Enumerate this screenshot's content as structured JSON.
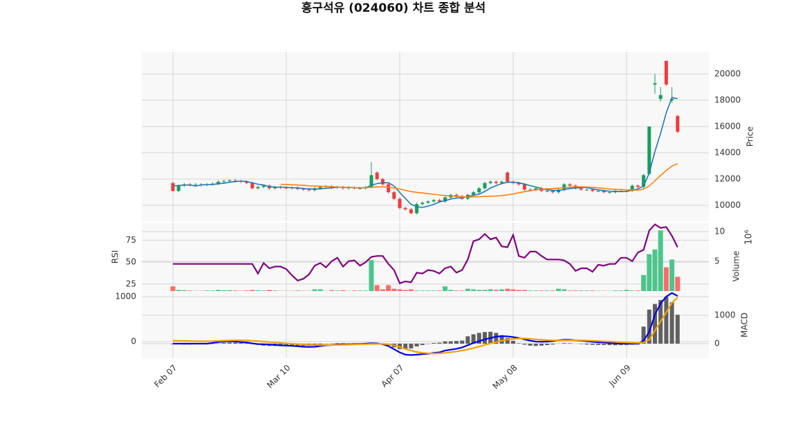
{
  "chart_data": [
    {
      "type": "candlestick",
      "title": "흥구석유 (024060) 차트 종합 분석",
      "ylabel": "Price",
      "y_side": "right",
      "grid": true,
      "up_color": "#14a05c",
      "down_color": "#f03c3c",
      "ylim": [
        8790,
        21684
      ],
      "yticks": [
        10000,
        12000,
        14000,
        16000,
        18000,
        20000
      ],
      "categories": [
        "Feb 07",
        null,
        null,
        null,
        null,
        null,
        null,
        null,
        null,
        null,
        null,
        null,
        null,
        null,
        null,
        null,
        null,
        null,
        null,
        null,
        "Mar 10",
        null,
        null,
        null,
        null,
        null,
        null,
        null,
        null,
        null,
        null,
        null,
        null,
        null,
        null,
        null,
        null,
        null,
        null,
        null,
        "Apr 07",
        null,
        null,
        null,
        null,
        null,
        null,
        null,
        null,
        null,
        null,
        null,
        null,
        null,
        null,
        null,
        null,
        null,
        null,
        null,
        "May 08",
        null,
        null,
        null,
        null,
        null,
        null,
        null,
        null,
        null,
        null,
        null,
        null,
        null,
        null,
        null,
        null,
        null,
        null,
        null,
        "Jun 09",
        null,
        null,
        null,
        null,
        null,
        null,
        null,
        null,
        null
      ],
      "open": [
        11700,
        11100,
        11500,
        11600,
        11550,
        11600,
        11550,
        11600,
        11650,
        11800,
        11850,
        11900,
        11850,
        11800,
        11700,
        11300,
        11400,
        11500,
        11300,
        11400,
        11350,
        11300,
        11350,
        11250,
        11200,
        11150,
        11300,
        11400,
        11450,
        11350,
        11400,
        11300,
        11350,
        11300,
        11300,
        11400,
        12500,
        12000,
        11600,
        11000,
        10500,
        9800,
        9700,
        9400,
        10100,
        10200,
        10300,
        10400,
        10300,
        10600,
        10800,
        10700,
        10500,
        10800,
        11000,
        11300,
        11700,
        11800,
        11700,
        12500,
        11800,
        11700,
        11600,
        11200,
        11200,
        11300,
        11100,
        11100,
        11000,
        11200,
        11600,
        11500,
        11300,
        11200,
        11200,
        11100,
        11100,
        11000,
        11000,
        11100,
        11100,
        11100,
        11500,
        11400,
        12400,
        19200,
        18100,
        21000,
        18000,
        16800
      ],
      "high": [
        11800,
        11600,
        11700,
        11700,
        11700,
        11700,
        11700,
        11750,
        11900,
        11950,
        12000,
        12000,
        11950,
        11900,
        11800,
        11500,
        11600,
        11600,
        11500,
        11500,
        11450,
        11450,
        11450,
        11350,
        11300,
        11400,
        11500,
        11550,
        11550,
        11500,
        11500,
        11450,
        11450,
        11400,
        11500,
        13300,
        12600,
        12100,
        11700,
        11100,
        10600,
        9900,
        9800,
        10200,
        10300,
        10400,
        10500,
        10500,
        10700,
        10900,
        10900,
        10800,
        10900,
        11100,
        11400,
        11800,
        11900,
        11900,
        11900,
        12600,
        11900,
        11800,
        11700,
        11300,
        11400,
        11400,
        11200,
        11200,
        11300,
        11700,
        11700,
        11600,
        11400,
        11300,
        11300,
        11200,
        11200,
        11100,
        11200,
        11200,
        11200,
        11600,
        11600,
        12400,
        16000,
        20000,
        19000,
        21000,
        19000,
        16900
      ],
      "low": [
        11000,
        11000,
        11400,
        11450,
        11450,
        11450,
        11450,
        11500,
        11550,
        11700,
        11750,
        11750,
        11700,
        11600,
        11200,
        11200,
        11300,
        11200,
        11200,
        11250,
        11200,
        11200,
        11150,
        11100,
        11050,
        11050,
        11200,
        11300,
        11250,
        11250,
        11200,
        11200,
        11200,
        11200,
        11200,
        11300,
        11900,
        11500,
        10900,
        10400,
        9700,
        9600,
        9300,
        9300,
        10000,
        10100,
        10200,
        10200,
        10200,
        10500,
        10600,
        10400,
        10400,
        10700,
        10900,
        11200,
        11600,
        11600,
        11600,
        11700,
        11600,
        11500,
        11100,
        11100,
        11100,
        11000,
        11000,
        10900,
        10900,
        11100,
        11400,
        11200,
        11100,
        11100,
        11000,
        11000,
        10900,
        10900,
        10900,
        11000,
        11000,
        11000,
        11300,
        11300,
        12300,
        18500,
        17900,
        19100,
        17800,
        15500
      ],
      "close": [
        11100,
        11500,
        11600,
        11550,
        11600,
        11550,
        11600,
        11650,
        11800,
        11850,
        11900,
        11850,
        11800,
        11700,
        11300,
        11400,
        11500,
        11300,
        11400,
        11350,
        11300,
        11350,
        11250,
        11200,
        11150,
        11300,
        11400,
        11450,
        11350,
        11400,
        11300,
        11350,
        11300,
        11300,
        11400,
        12300,
        12000,
        11600,
        11000,
        10500,
        9800,
        9700,
        9400,
        10100,
        10200,
        10300,
        10400,
        10300,
        10600,
        10800,
        10700,
        10500,
        10800,
        11000,
        11300,
        11700,
        11800,
        11700,
        11800,
        11800,
        11700,
        11600,
        11200,
        11200,
        11300,
        11100,
        11100,
        11000,
        11200,
        11600,
        11500,
        11300,
        11200,
        11200,
        11100,
        11100,
        11000,
        11000,
        11100,
        11100,
        11100,
        11500,
        11400,
        12300,
        16000,
        19300,
        18400,
        19200,
        18100,
        15600
      ],
      "lines": [
        {
          "color": "#1f77b4",
          "values": [
            11500,
            11500,
            11550,
            11550,
            11470,
            11560,
            11580,
            11590,
            11640,
            11690,
            11760,
            11810,
            11840,
            11820,
            11710,
            11610,
            11540,
            11440,
            11380,
            11390,
            11370,
            11340,
            11330,
            11290,
            11250,
            11250,
            11260,
            11300,
            11330,
            11380,
            11380,
            11370,
            11340,
            11330,
            11330,
            11530,
            11660,
            11720,
            11720,
            11480,
            10980,
            10520,
            10080,
            9900,
            9840,
            9940,
            10080,
            10260,
            10360,
            10480,
            10560,
            10580,
            10680,
            10760,
            10860,
            11060,
            11320,
            11500,
            11660,
            11760,
            11760,
            11720,
            11620,
            11500,
            11400,
            11280,
            11180,
            11140,
            11140,
            11200,
            11280,
            11320,
            11360,
            11360,
            11260,
            11180,
            11120,
            11080,
            11060,
            11060,
            11060,
            11160,
            11240,
            11480,
            12460,
            14100,
            15480,
            17040,
            18200,
            18120
          ]
        },
        {
          "color": "#ff7f0e",
          "values": [
            null,
            null,
            null,
            null,
            null,
            null,
            null,
            null,
            null,
            null,
            null,
            null,
            null,
            null,
            null,
            null,
            null,
            null,
            null,
            11600,
            11590,
            11570,
            11550,
            11520,
            11490,
            11470,
            11460,
            11440,
            11420,
            11400,
            11380,
            11370,
            11360,
            11350,
            11340,
            11380,
            11400,
            11410,
            11380,
            11320,
            11240,
            11140,
            11050,
            10990,
            10940,
            10890,
            10840,
            10790,
            10750,
            10720,
            10690,
            10650,
            10640,
            10640,
            10660,
            10680,
            10700,
            10710,
            10740,
            10800,
            10870,
            10960,
            11040,
            11110,
            11180,
            11230,
            11260,
            11280,
            11310,
            11340,
            11380,
            11410,
            11410,
            11400,
            11370,
            11330,
            11290,
            11250,
            11220,
            11200,
            11180,
            11170,
            11160,
            11230,
            11480,
            11880,
            12270,
            12660,
            12990,
            13180
          ]
        }
      ]
    },
    {
      "type": "volume_rsi",
      "ylabel": "RSI",
      "y_side": "left",
      "y2label": "Volume",
      "y2_offset_label": "10⁶",
      "grid": true,
      "ylim": [
        17,
        95
      ],
      "yticks": [
        25,
        50,
        75
      ],
      "y2lim": [
        0,
        11.5
      ],
      "y2ticks": [
        5,
        10
      ],
      "volume": {
        "axis": "y2",
        "up_color": "#4cc58c",
        "down_color": "#ff6b6b",
        "values": [
          0.8,
          0.2,
          0.15,
          0.1,
          0.05,
          0.05,
          0.1,
          0.1,
          0.2,
          0.15,
          0.15,
          0.1,
          0.05,
          0.1,
          0.2,
          0.15,
          0.1,
          0.2,
          0.1,
          0.05,
          0.05,
          0.05,
          0.1,
          0.05,
          0.05,
          0.3,
          0.3,
          0.05,
          0.15,
          0.1,
          0.15,
          0.05,
          0.1,
          0.1,
          0.1,
          5.2,
          1.0,
          0.3,
          1.0,
          0.4,
          0.3,
          0.2,
          0.3,
          0.1,
          0.1,
          0.1,
          0.1,
          0.1,
          0.8,
          0.2,
          0.1,
          0.1,
          0.4,
          0.3,
          0.2,
          0.2,
          0.3,
          0.2,
          0.3,
          0.4,
          0.3,
          0.2,
          0.2,
          0.1,
          0.1,
          0.1,
          0.1,
          0.1,
          0.4,
          0.3,
          0.1,
          0.1,
          0.1,
          0.1,
          0.1,
          0.05,
          0.05,
          0.05,
          0.1,
          0.1,
          0.2,
          0.1,
          0.1,
          2.7,
          6.2,
          7.0,
          10.2,
          4.0,
          5.3,
          2.4
        ]
      },
      "rsi": {
        "color": "#800080",
        "values": [
          48,
          48,
          48,
          48,
          48,
          48,
          48,
          48,
          48,
          48,
          48,
          48,
          48,
          48,
          48,
          37,
          49,
          43,
          45,
          45,
          42,
          35,
          29,
          31,
          36,
          46,
          49,
          44,
          51,
          55,
          45,
          51,
          52,
          46,
          50,
          56,
          57,
          57,
          48,
          41,
          26,
          28,
          27,
          38,
          37,
          41,
          40,
          37,
          43,
          45,
          38,
          41,
          53,
          74,
          76,
          82,
          76,
          78,
          68,
          67,
          81,
          57,
          55,
          62,
          62,
          57,
          53,
          53,
          53,
          52,
          48,
          40,
          43,
          43,
          39,
          47,
          46,
          48,
          48,
          55,
          55,
          51,
          61,
          64,
          86,
          93,
          89,
          90,
          80,
          67
        ]
      }
    },
    {
      "type": "macd",
      "y_side": "left",
      "y2label": "MACD",
      "grid": true,
      "ylim": [
        -369,
        1108
      ],
      "yticks": [
        0,
        1000
      ],
      "y2lim": [
        -512,
        1829
      ],
      "y2ticks": [
        0,
        1000
      ],
      "series": [
        {
          "color": "#0000ee",
          "values": [
            -46,
            -46,
            -46,
            -46,
            -46,
            -46,
            -46,
            -30,
            -10,
            0,
            5,
            0,
            -10,
            -20,
            -40,
            -55,
            -60,
            -65,
            -75,
            -85,
            -90,
            -95,
            -105,
            -115,
            -120,
            -115,
            -100,
            -85,
            -75,
            -65,
            -60,
            -60,
            -55,
            -50,
            -45,
            -35,
            -40,
            -60,
            -100,
            -170,
            -240,
            -290,
            -300,
            -290,
            -280,
            -270,
            -250,
            -240,
            -200,
            -180,
            -160,
            -130,
            -80,
            -30,
            10,
            50,
            80,
            110,
            120,
            115,
            100,
            80,
            50,
            20,
            0,
            -5,
            0,
            10,
            30,
            40,
            40,
            30,
            20,
            5,
            -5,
            -15,
            -20,
            -30,
            -40,
            -45,
            -46,
            -46,
            -46,
            20,
            215,
            600,
            850,
            1000,
            1080,
            1015
          ]
        },
        {
          "color": "#f5a000",
          "values": [
            20,
            18,
            15,
            12,
            10,
            8,
            8,
            10,
            15,
            20,
            25,
            28,
            28,
            25,
            18,
            10,
            0,
            -10,
            -20,
            -30,
            -40,
            -48,
            -55,
            -62,
            -70,
            -75,
            -78,
            -78,
            -77,
            -74,
            -70,
            -67,
            -64,
            -60,
            -56,
            -52,
            -50,
            -52,
            -62,
            -85,
            -120,
            -165,
            -200,
            -230,
            -250,
            -262,
            -265,
            -262,
            -250,
            -235,
            -220,
            -200,
            -175,
            -145,
            -110,
            -75,
            -40,
            -10,
            20,
            45,
            60,
            70,
            70,
            62,
            50,
            40,
            32,
            27,
            27,
            28,
            30,
            30,
            28,
            24,
            18,
            12,
            6,
            0,
            -8,
            -15,
            -20,
            -25,
            -29,
            -18,
            40,
            245,
            450,
            650,
            860,
            985
          ]
        }
      ],
      "histogram": {
        "axis": "y2",
        "color": "#606060",
        "values": [
          -20,
          -25,
          -30,
          -30,
          -25,
          -20,
          -15,
          -5,
          10,
          30,
          40,
          40,
          30,
          20,
          -10,
          -40,
          -70,
          -80,
          -80,
          -80,
          -70,
          -70,
          -75,
          -80,
          -75,
          -60,
          -35,
          -10,
          5,
          15,
          15,
          10,
          15,
          15,
          20,
          30,
          15,
          -15,
          -60,
          -130,
          -190,
          -200,
          -170,
          -100,
          -50,
          -10,
          25,
          35,
          80,
          85,
          95,
          110,
          260,
          330,
          380,
          410,
          420,
          380,
          300,
          200,
          100,
          15,
          -35,
          -70,
          -80,
          -70,
          -50,
          -30,
          5,
          20,
          15,
          0,
          -15,
          -30,
          -40,
          -45,
          -45,
          -50,
          -55,
          -50,
          -45,
          -35,
          -30,
          600,
          1200,
          1400,
          1540,
          1650,
          1460,
          1020
        ]
      }
    }
  ]
}
